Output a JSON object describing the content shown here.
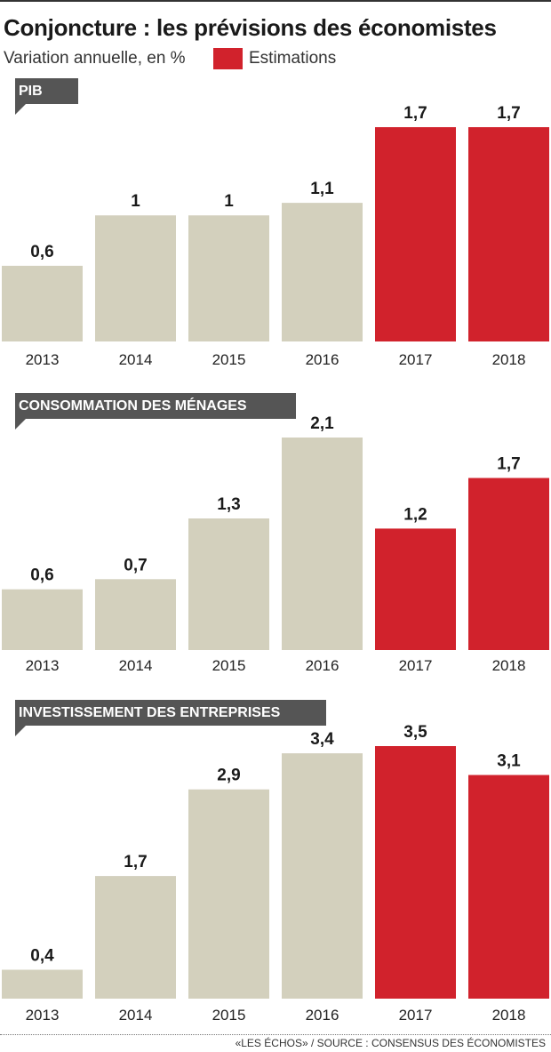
{
  "header": {
    "title": "Conjoncture : les prévisions des économistes",
    "subtitle": "Variation annuelle, en %",
    "legend_label": "Estimations"
  },
  "colors": {
    "actual": "#d3d0bd",
    "estimate": "#d1222c",
    "tag": "#555555"
  },
  "chart_data": [
    {
      "type": "bar",
      "title": "PIB",
      "categories": [
        "2013",
        "2014",
        "2015",
        "2016",
        "2017",
        "2018"
      ],
      "values": [
        0.6,
        1,
        1,
        1.1,
        1.7,
        1.7
      ],
      "value_labels": [
        "0,6",
        "1",
        "1",
        "1,1",
        "1,7",
        "1,7"
      ],
      "estimated": [
        false,
        false,
        false,
        false,
        true,
        true
      ],
      "legend": "Estimations",
      "ylabel": "Variation annuelle, en %",
      "ylim": [
        0,
        1.7
      ],
      "grid": false
    },
    {
      "type": "bar",
      "title": "CONSOMMATION DES MÉNAGES",
      "categories": [
        "2013",
        "2014",
        "2015",
        "2016",
        "2017",
        "2018"
      ],
      "values": [
        0.6,
        0.7,
        1.3,
        2.1,
        1.2,
        1.7
      ],
      "value_labels": [
        "0,6",
        "0,7",
        "1,3",
        "2,1",
        "1,2",
        "1,7"
      ],
      "estimated": [
        false,
        false,
        false,
        false,
        true,
        true
      ],
      "legend": "Estimations",
      "ylabel": "Variation annuelle, en %",
      "ylim": [
        0,
        2.1
      ],
      "grid": false
    },
    {
      "type": "bar",
      "title": "INVESTISSEMENT DES ENTREPRISES",
      "categories": [
        "2013",
        "2014",
        "2015",
        "2016",
        "2017",
        "2018"
      ],
      "values": [
        0.4,
        1.7,
        2.9,
        3.4,
        3.5,
        3.1
      ],
      "value_labels": [
        "0,4",
        "1,7",
        "2,9",
        "3,4",
        "3,5",
        "3,1"
      ],
      "estimated": [
        false,
        false,
        false,
        false,
        true,
        true
      ],
      "legend": "Estimations",
      "ylabel": "Variation annuelle, en %",
      "ylim": [
        0,
        3.5
      ],
      "grid": false
    }
  ],
  "footer": {
    "source": "«LES ÉCHOS» / SOURCE : CONSENSUS DES ÉCONOMISTES"
  }
}
